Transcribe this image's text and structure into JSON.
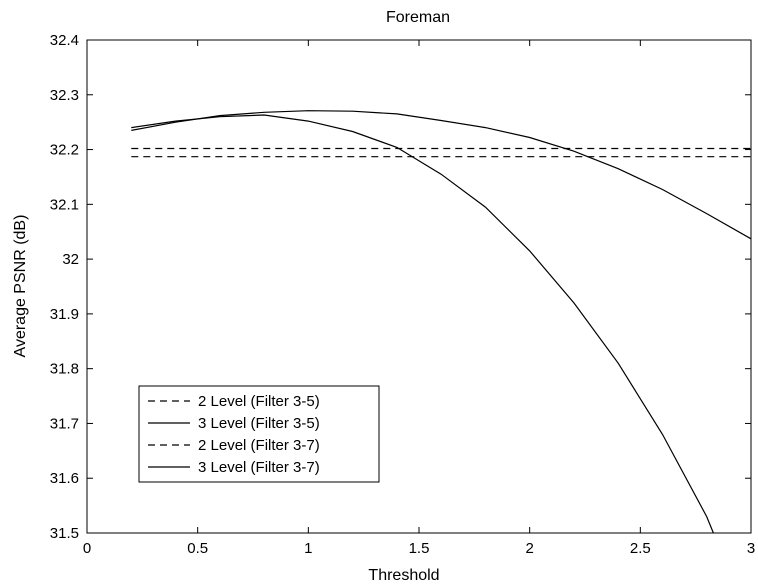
{
  "chart_data": {
    "type": "line",
    "title": "Foreman",
    "xlabel": "Threshold",
    "ylabel": "Average PSNR (dB)",
    "xlim": [
      0,
      3
    ],
    "ylim": [
      31.5,
      32.4
    ],
    "xticks": [
      0,
      0.5,
      1,
      1.5,
      2,
      2.5,
      3
    ],
    "xtick_labels": [
      "0",
      "0.5",
      "1",
      "1.5",
      "2",
      "2.5",
      "3"
    ],
    "yticks": [
      31.5,
      31.6,
      31.7,
      31.8,
      31.9,
      32,
      32.1,
      32.2,
      32.3,
      32.4
    ],
    "ytick_labels": [
      "31.5",
      "31.6",
      "31.7",
      "31.8",
      "31.9",
      "32",
      "32.1",
      "32.2",
      "32.3",
      "32.4"
    ],
    "grid": false,
    "legend_position": "lower-left",
    "series": [
      {
        "name": "2 Level (Filter 3-5)",
        "style": "dashed",
        "color": "#000000",
        "x": [
          0.2,
          3
        ],
        "y": [
          32.202,
          32.202
        ]
      },
      {
        "name": "3 Level (Filter 3-5)",
        "style": "solid",
        "color": "#000000",
        "x": [
          0.2,
          0.4,
          0.6,
          0.8,
          1.0,
          1.2,
          1.4,
          1.6,
          1.8,
          2.0,
          2.2,
          2.4,
          2.6,
          2.8,
          3.0
        ],
        "y": [
          32.235,
          32.25,
          32.262,
          32.268,
          32.271,
          32.27,
          32.265,
          32.253,
          32.24,
          32.222,
          32.197,
          32.165,
          32.127,
          32.083,
          32.037
        ]
      },
      {
        "name": "2 Level (Filter 3-7)",
        "style": "dashed",
        "color": "#000000",
        "x": [
          0.2,
          3
        ],
        "y": [
          32.187,
          32.187
        ]
      },
      {
        "name": "3 Level (Filter 3-7)",
        "style": "solid",
        "color": "#000000",
        "x": [
          0.2,
          0.4,
          0.6,
          0.8,
          1.0,
          1.2,
          1.4,
          1.6,
          1.8,
          2.0,
          2.2,
          2.4,
          2.6,
          2.8,
          2.83
        ],
        "y": [
          32.24,
          32.252,
          32.26,
          32.263,
          32.252,
          32.233,
          32.204,
          32.155,
          32.095,
          32.015,
          31.92,
          31.81,
          31.68,
          31.53,
          31.5
        ]
      }
    ]
  }
}
